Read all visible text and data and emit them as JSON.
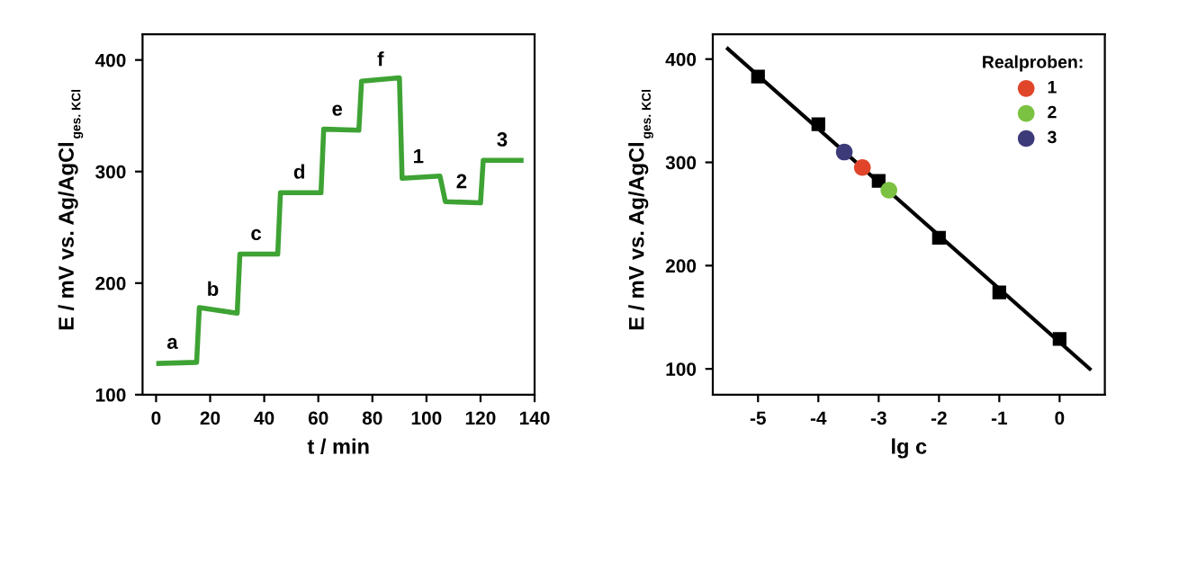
{
  "chart_data": [
    {
      "type": "line",
      "xlabel": "t / min",
      "ylabel": "E / mV vs. Ag/AgCl$_{ges. KCl}$",
      "xlim": [
        -5,
        140
      ],
      "ylim": [
        100,
        423
      ],
      "xticks": [
        0,
        20,
        40,
        60,
        80,
        100,
        120,
        140
      ],
      "yticks": [
        100,
        200,
        300,
        400
      ],
      "grid": false,
      "legend": false,
      "series": [
        {
          "color": "#3ea334",
          "marker": "none",
          "line_style": "solid",
          "x": [
            1,
            15,
            16,
            30,
            31,
            45,
            46,
            61,
            62,
            75,
            76,
            90,
            91,
            105,
            107,
            120,
            121,
            135
          ],
          "values": [
            128,
            129,
            178,
            173,
            226,
            226,
            281,
            281,
            338,
            337,
            381,
            384,
            294,
            296,
            273,
            272,
            310,
            310
          ]
        }
      ],
      "annotations": [
        {
          "text": "a",
          "x": 6,
          "y": 128.5
        },
        {
          "text": "b",
          "x": 21,
          "y": 176
        },
        {
          "text": "c",
          "x": 37,
          "y": 226
        },
        {
          "text": "d",
          "x": 53,
          "y": 281
        },
        {
          "text": "e",
          "x": 67,
          "y": 337.5
        },
        {
          "text": "f",
          "x": 83,
          "y": 382
        },
        {
          "text": "1",
          "x": 97,
          "y": 295
        },
        {
          "text": "2",
          "x": 113,
          "y": 272.5
        },
        {
          "text": "3",
          "x": 128,
          "y": 310
        }
      ]
    },
    {
      "type": "scatter",
      "xlabel": "lg c",
      "ylabel": "E / mV vs. Ag/AgCl$_{ges. KCl}$",
      "xlim": [
        -5.75,
        0.75
      ],
      "ylim": [
        75,
        424
      ],
      "xticks": [
        {
          "value": -5,
          "label": "-5"
        },
        {
          "value": -4,
          "label": "-4"
        },
        {
          "value": -3,
          "label": "-3"
        },
        {
          "value": -2,
          "label": "-2"
        },
        {
          "value": -1,
          "label": "-1"
        },
        0
      ],
      "yticks": [
        100,
        200,
        300,
        400
      ],
      "grid": false,
      "legend": "top right",
      "legend_title": "Realproben:",
      "series": [
        {
          "type": "line",
          "color": "#000000",
          "marker": "none",
          "line_style": "solid",
          "x": [
            -5.5,
            0.5
          ],
          "values": [
            410,
            100
          ]
        },
        {
          "type": "scatter",
          "color": "#000000",
          "marker": "square",
          "x": [
            -5,
            -4,
            -3,
            -2,
            -1,
            0
          ],
          "values": [
            383,
            337,
            282,
            227,
            174,
            129
          ]
        },
        {
          "type": "scatter",
          "name": "1",
          "color": "#e0452a",
          "marker": "circle",
          "x": [
            -3.27
          ],
          "values": [
            295
          ]
        },
        {
          "type": "scatter",
          "name": "2",
          "color": "#7cc242",
          "marker": "circle",
          "x": [
            -2.83
          ],
          "values": [
            273
          ]
        },
        {
          "type": "scatter",
          "name": "3",
          "color": "#3d3a7a",
          "marker": "circle",
          "x": [
            -3.57
          ],
          "values": [
            310
          ]
        }
      ]
    }
  ]
}
